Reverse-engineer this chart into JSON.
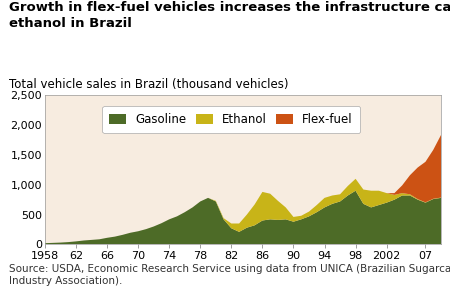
{
  "title": "Growth in flex-fuel vehicles increases the infrastructure capacity of\nethanol in Brazil",
  "subtitle": "Total vehicle sales in Brazil (thousand vehicles)",
  "source": "Source: USDA, Economic Research Service using data from UNICA (Brazilian Sugarcane\nIndustry Association).",
  "years": [
    1958,
    1959,
    1960,
    1961,
    1962,
    1963,
    1964,
    1965,
    1966,
    1967,
    1968,
    1969,
    1970,
    1971,
    1972,
    1973,
    1974,
    1975,
    1976,
    1977,
    1978,
    1979,
    1980,
    1981,
    1982,
    1983,
    1984,
    1985,
    1986,
    1987,
    1988,
    1989,
    1990,
    1991,
    1992,
    1993,
    1994,
    1995,
    1996,
    1997,
    1998,
    1999,
    2000,
    2001,
    2002,
    2003,
    2004,
    2005,
    2006,
    2007,
    2008,
    2009
  ],
  "gasoline": [
    20,
    25,
    30,
    38,
    50,
    65,
    75,
    85,
    110,
    130,
    160,
    195,
    220,
    255,
    300,
    355,
    420,
    470,
    540,
    620,
    720,
    780,
    720,
    420,
    270,
    210,
    280,
    320,
    400,
    420,
    410,
    420,
    380,
    420,
    470,
    540,
    620,
    680,
    720,
    820,
    900,
    680,
    620,
    660,
    700,
    750,
    820,
    820,
    750,
    700,
    760,
    780
  ],
  "ethanol": [
    0,
    0,
    0,
    0,
    0,
    0,
    0,
    0,
    0,
    0,
    0,
    0,
    0,
    0,
    0,
    0,
    0,
    0,
    0,
    0,
    0,
    0,
    10,
    20,
    80,
    140,
    220,
    350,
    480,
    430,
    320,
    200,
    80,
    60,
    80,
    120,
    160,
    140,
    120,
    160,
    200,
    240,
    280,
    240,
    160,
    80,
    40,
    20,
    10,
    5,
    5,
    5
  ],
  "flex_fuel": [
    0,
    0,
    0,
    0,
    0,
    0,
    0,
    0,
    0,
    0,
    0,
    0,
    0,
    0,
    0,
    0,
    0,
    0,
    0,
    0,
    0,
    0,
    0,
    0,
    0,
    0,
    0,
    0,
    0,
    0,
    0,
    0,
    0,
    0,
    0,
    0,
    0,
    0,
    0,
    0,
    0,
    0,
    0,
    0,
    0,
    30,
    130,
    320,
    530,
    680,
    820,
    1050
  ],
  "gasoline_color": "#4d6b27",
  "ethanol_color": "#c8b418",
  "flex_fuel_color": "#cc5214",
  "background_color": "#f7ece0",
  "plot_bg_color": "#f7ece0",
  "ylim": [
    0,
    2500
  ],
  "yticks": [
    0,
    500,
    1000,
    1500,
    2000,
    2500
  ],
  "xticks": [
    1958,
    1962,
    1966,
    1970,
    1974,
    1978,
    1982,
    1986,
    1990,
    1994,
    1998,
    2002,
    2007
  ],
  "xticklabels": [
    "1958",
    "62",
    "66",
    "70",
    "74",
    "78",
    "82",
    "86",
    "90",
    "94",
    "98",
    "2002",
    "07"
  ],
  "title_fontsize": 9.5,
  "subtitle_fontsize": 8.5,
  "tick_fontsize": 8,
  "source_fontsize": 7.5,
  "legend_fontsize": 8.5
}
